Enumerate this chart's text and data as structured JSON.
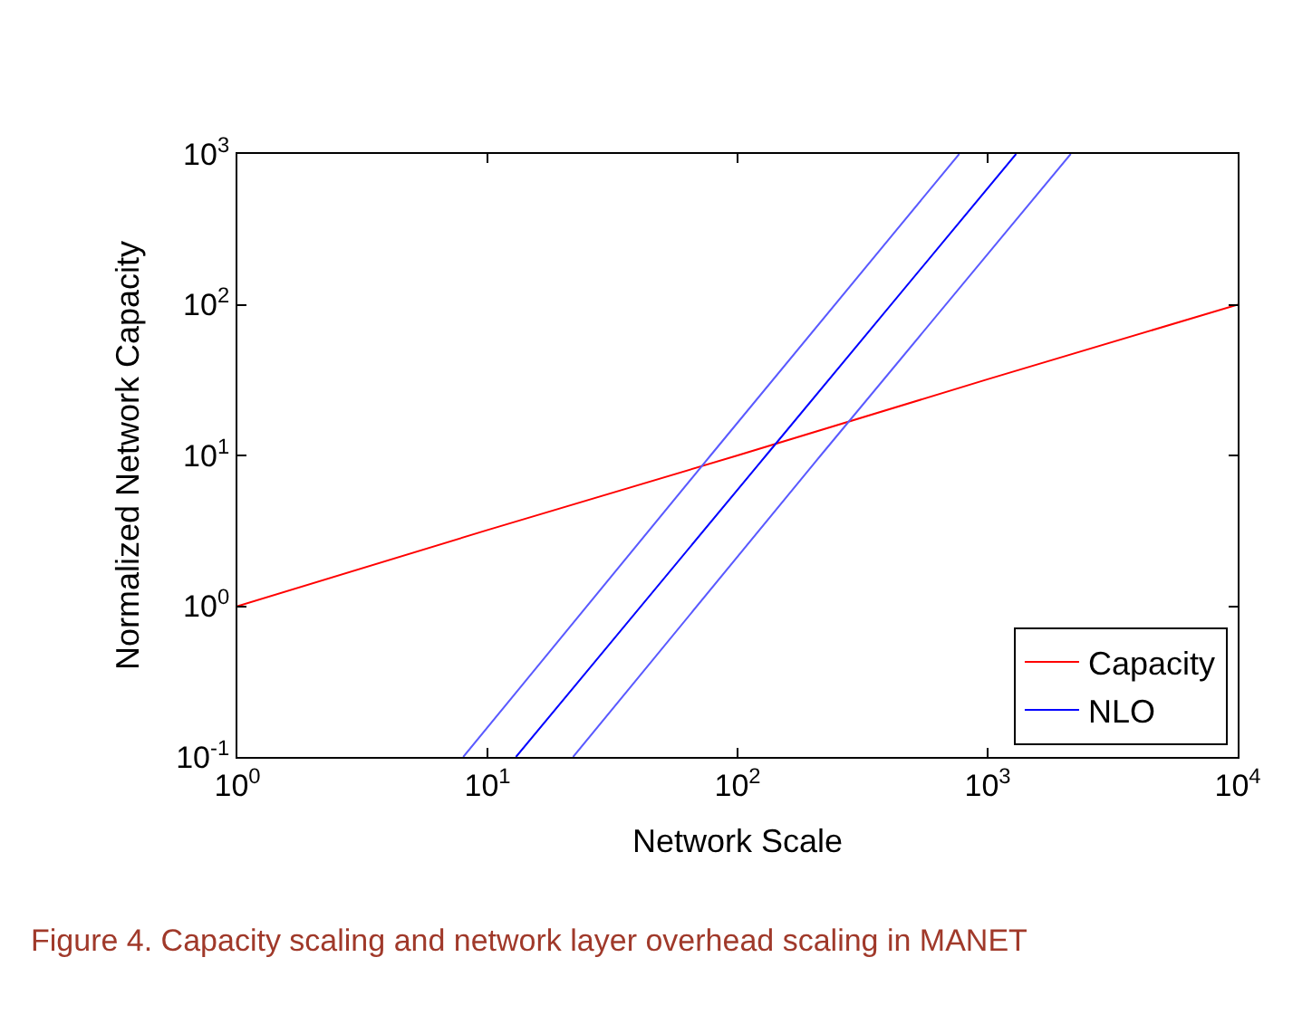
{
  "chart_data": {
    "type": "line",
    "xlabel": "Network Scale",
    "ylabel": "Normalized Network Capacity",
    "annotations": [
      "Figure 4. Capacity scaling and network layer overhead scaling in MANET"
    ],
    "log": "xy",
    "legend": "bottom right",
    "marker": "none",
    "line_style": "solid",
    "xlim": [
      1,
      10000
    ],
    "ylim": [
      0.1,
      1000
    ],
    "xticks": [
      {
        "value": 1,
        "label": "10$^{0}$"
      },
      {
        "value": 10,
        "label": "10$^{1}$"
      },
      {
        "value": 100,
        "label": "10$^{2}$"
      },
      {
        "value": 1000,
        "label": "10$^{3}$"
      },
      {
        "value": 10000,
        "label": "10$^{4}$"
      }
    ],
    "yticks": [
      {
        "value": 0.1,
        "label": "10$^{-1}$"
      },
      {
        "value": 1,
        "label": "10$^{0}$"
      },
      {
        "value": 10,
        "label": "10$^{1}$"
      },
      {
        "value": 100,
        "label": "10$^{2}$"
      },
      {
        "value": 1000,
        "label": "10$^{3}$"
      }
    ],
    "series": [
      {
        "name": "Capacity",
        "color": "#ff0000",
        "x": [
          1,
          10,
          100,
          1000,
          10000
        ],
        "values": [
          1,
          3.2,
          10,
          32,
          100
        ]
      },
      {
        "name": "NLO",
        "color": "#0000ff",
        "x": [
          13,
          130,
          1300
        ],
        "values": [
          0.1,
          10,
          1000
        ]
      },
      {
        "color": "#5a5aff",
        "x": [
          8,
          78,
          770
        ],
        "values": [
          0.1,
          10,
          1000
        ]
      },
      {
        "color": "#5a5aff",
        "x": [
          22,
          215,
          2150
        ],
        "values": [
          0.1,
          10,
          1000
        ]
      }
    ]
  }
}
